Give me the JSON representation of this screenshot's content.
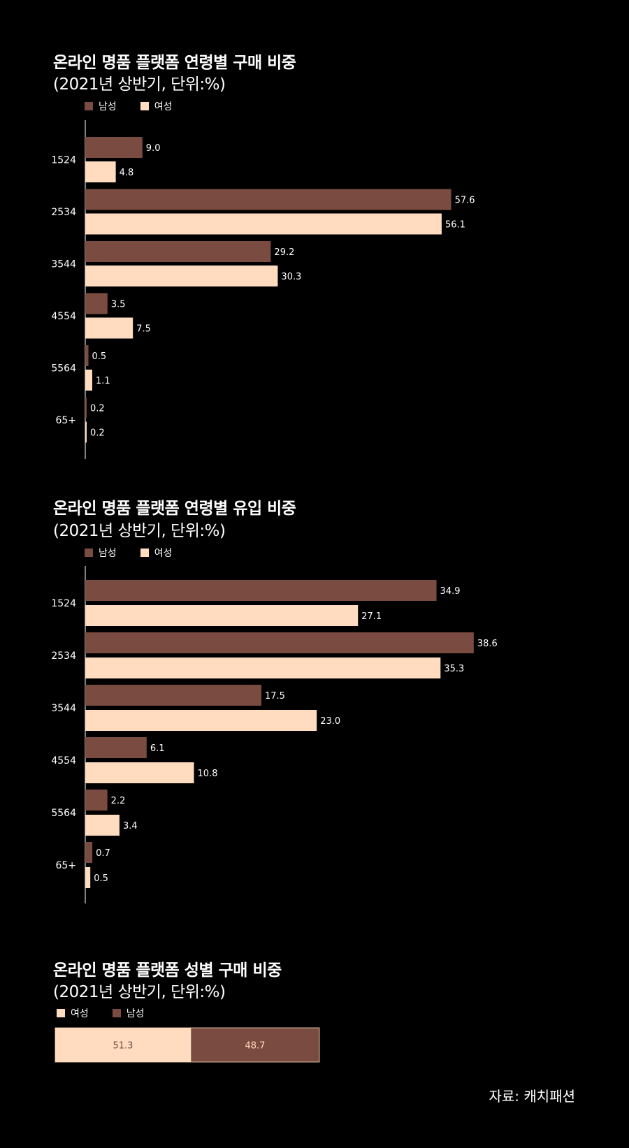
{
  "colors": {
    "male": "#7a4b40",
    "female": "#ffdcbf",
    "axis": "#ffffff",
    "background": "#000000"
  },
  "legend": {
    "male": "남성",
    "female": "여성"
  },
  "source": "자료: 캐치패션",
  "chart_data": [
    {
      "type": "bar",
      "orientation": "horizontal",
      "title": "온라인 명품 플랫폼 연령별 구매 비중",
      "subtitle": "(2021년 상반기, 단위:%)",
      "categories": [
        "1524",
        "2534",
        "3544",
        "4554",
        "5564",
        "65+"
      ],
      "series": [
        {
          "name": "남성",
          "values": [
            9.0,
            57.6,
            29.2,
            3.5,
            0.5,
            0.2
          ]
        },
        {
          "name": "여성",
          "values": [
            4.8,
            56.1,
            30.3,
            7.5,
            1.1,
            0.2
          ]
        }
      ],
      "xlim": [
        0,
        60
      ],
      "grid": false,
      "legend_position": "top-left"
    },
    {
      "type": "bar",
      "orientation": "horizontal",
      "title": "온라인 명품 플랫폼 연령별 유입 비중",
      "subtitle": "(2021년 상반기, 단위:%)",
      "categories": [
        "1524",
        "2534",
        "3544",
        "4554",
        "5564",
        "65+"
      ],
      "series": [
        {
          "name": "남성",
          "values": [
            34.9,
            38.6,
            17.5,
            6.1,
            2.2,
            0.7
          ]
        },
        {
          "name": "여성",
          "values": [
            27.1,
            35.3,
            23.0,
            10.8,
            3.4,
            0.5
          ]
        }
      ],
      "xlim": [
        0,
        40
      ],
      "grid": false,
      "legend_position": "top-left"
    },
    {
      "type": "bar",
      "orientation": "stacked-100",
      "title": "온라인 명품 플랫폼 성별 구매 비중",
      "subtitle": "(2021년 상반기, 단위:%)",
      "series": [
        {
          "name": "여성",
          "values": [
            51.3
          ]
        },
        {
          "name": "남성",
          "values": [
            48.7
          ]
        }
      ],
      "legend_position": "top-left"
    }
  ]
}
